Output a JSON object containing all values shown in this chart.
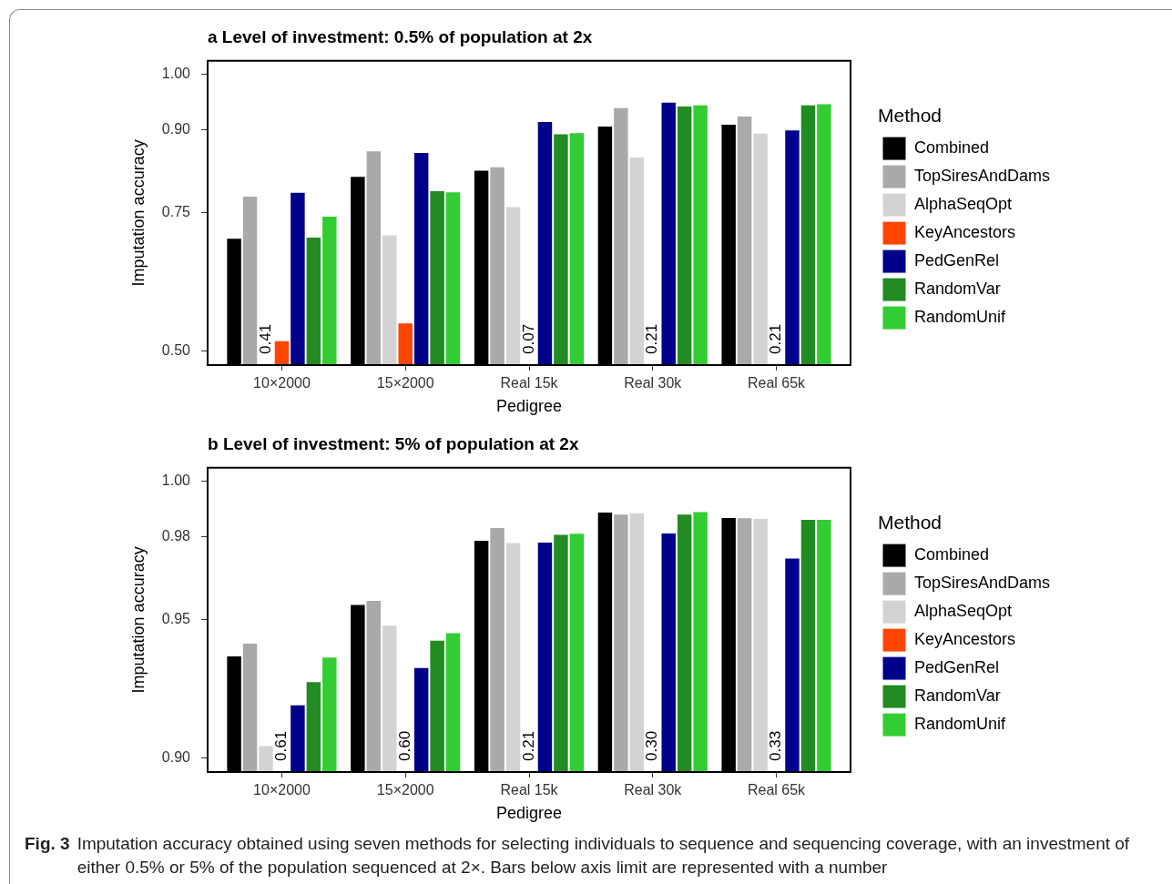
{
  "chart_data": [
    {
      "type": "bar",
      "title": "a Level of investment: 0.5% of population at 2x",
      "xlabel": "Pedigree",
      "ylabel": "Imputation accuracy",
      "legend_title": "Method",
      "legend": "right",
      "categories": [
        "10×2000",
        "15×2000",
        "Real 15k",
        "Real 30k",
        "Real 65k"
      ],
      "ylim": [
        0.475,
        1.025
      ],
      "yticks": [
        {
          "value": 0.5,
          "label": "0.50"
        },
        {
          "value": 0.75,
          "label": "0.75"
        },
        {
          "value": 0.9,
          "label": "0.90"
        },
        {
          "value": 1.0,
          "label": "1.00"
        }
      ],
      "series": [
        {
          "name": "Combined",
          "color": "#000000",
          "values": [
            0.705,
            0.817,
            0.828,
            0.908,
            0.911
          ]
        },
        {
          "name": "TopSiresAndDams",
          "color": "#a9a9a9",
          "values": [
            0.781,
            0.863,
            0.834,
            0.941,
            0.926
          ]
        },
        {
          "name": "AlphaSeqOpt",
          "color": "#d3d3d3",
          "values": [
            null,
            0.711,
            0.762,
            0.852,
            0.895
          ],
          "value_labels": [
            "0.41",
            null,
            null,
            null,
            null
          ]
        },
        {
          "name": "KeyAncestors",
          "color": "#ff4500",
          "values": [
            0.52,
            0.552,
            null,
            null,
            null
          ],
          "value_labels": [
            null,
            null,
            "0.07",
            "0.21",
            "0.21"
          ]
        },
        {
          "name": "PedGenRel",
          "color": "#00008b",
          "values": [
            0.788,
            0.86,
            0.916,
            0.951,
            0.901
          ]
        },
        {
          "name": "RandomVar",
          "color": "#228b22",
          "values": [
            0.707,
            0.791,
            0.894,
            0.944,
            0.946
          ]
        },
        {
          "name": "RandomUnif",
          "color": "#32cd32",
          "values": [
            0.745,
            0.789,
            0.896,
            0.946,
            0.948
          ]
        }
      ]
    },
    {
      "type": "bar",
      "title": "b Level of investment: 5% of population at 2x",
      "xlabel": "Pedigree",
      "ylabel": "Imputation accuracy",
      "legend_title": "Method",
      "legend": "right",
      "categories": [
        "10×2000",
        "15×2000",
        "Real 15k",
        "Real 30k",
        "Real 65k"
      ],
      "ylim": [
        0.895,
        1.005
      ],
      "yticks": [
        {
          "value": 0.9,
          "label": "0.90"
        },
        {
          "value": 0.95,
          "label": "0.95"
        },
        {
          "value": 0.98,
          "label": "0.98"
        },
        {
          "value": 1.0,
          "label": "1.00"
        }
      ],
      "series": [
        {
          "name": "Combined",
          "color": "#000000",
          "values": [
            0.9371,
            0.9557,
            0.9789,
            0.9891,
            0.9872
          ]
        },
        {
          "name": "TopSiresAndDams",
          "color": "#a9a9a9",
          "values": [
            0.9417,
            0.9572,
            0.9835,
            0.9884,
            0.9871
          ]
        },
        {
          "name": "AlphaSeqOpt",
          "color": "#d3d3d3",
          "values": [
            0.9047,
            0.9482,
            0.9781,
            0.9889,
            0.9868
          ]
        },
        {
          "name": "KeyAncestors",
          "color": "#ff4500",
          "values": [
            null,
            null,
            null,
            null,
            null
          ],
          "value_labels": [
            "0.61",
            "0.60",
            "0.21",
            "0.30",
            "0.33"
          ]
        },
        {
          "name": "PedGenRel",
          "color": "#00008b",
          "values": [
            0.9194,
            0.9329,
            0.9783,
            0.9816,
            0.9725
          ]
        },
        {
          "name": "RandomVar",
          "color": "#228b22",
          "values": [
            0.9278,
            0.9428,
            0.9811,
            0.9884,
            0.9865
          ]
        },
        {
          "name": "RandomUnif",
          "color": "#32cd32",
          "values": [
            0.9367,
            0.9455,
            0.9815,
            0.9893,
            0.9865
          ]
        }
      ],
      "annotations": [
        "Fig. 3",
        "Imputation accuracy obtained using seven methods for selecting individuals to sequence and sequencing coverage, with an investment of either 0.5% or 5% of the population sequenced at 2×. Bars below axis limit are represented with a number"
      ]
    }
  ]
}
